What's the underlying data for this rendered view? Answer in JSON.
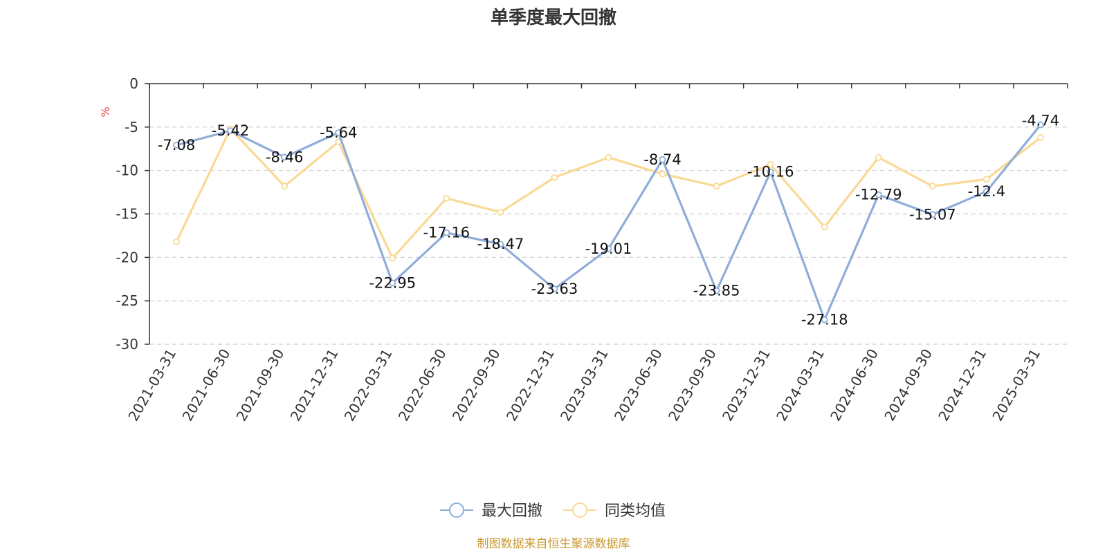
{
  "chart_data": {
    "type": "line",
    "title": "单季度最大回撤",
    "ylabel": "%",
    "ylim": [
      -30,
      0
    ],
    "yticks": [
      0,
      -5,
      -10,
      -15,
      -20,
      -25,
      -30
    ],
    "categories": [
      "2021-03-31",
      "2021-06-30",
      "2021-09-30",
      "2021-12-31",
      "2022-03-31",
      "2022-06-30",
      "2022-09-30",
      "2022-12-31",
      "2023-03-31",
      "2023-06-30",
      "2023-09-30",
      "2023-12-31",
      "2024-03-31",
      "2024-06-30",
      "2024-09-30",
      "2024-12-31",
      "2025-03-31"
    ],
    "series": [
      {
        "name": "最大回撤",
        "color": "#8FADD9",
        "values": [
          -7.08,
          -5.42,
          -8.46,
          -5.64,
          -22.95,
          -17.16,
          -18.47,
          -23.63,
          -19.01,
          -8.74,
          -23.85,
          -10.16,
          -27.18,
          -12.79,
          -15.07,
          -12.4,
          -4.74
        ],
        "labels": [
          "-7.08",
          "-5.42",
          "-8.46",
          "-5.64",
          "-22.95",
          "-17.16",
          "-18.47",
          "-23.63",
          "-19.01",
          "-8.74",
          "-23.85",
          "-10.16",
          "-27.18",
          "-12.79",
          "-15.07",
          "-12.4",
          "-4.74"
        ]
      },
      {
        "name": "同类均值",
        "color": "#FAD995",
        "values": [
          -18.2,
          -5.2,
          -11.8,
          -6.7,
          -20.1,
          -13.2,
          -14.8,
          -10.8,
          -8.5,
          -10.4,
          -11.8,
          -9.3,
          -16.5,
          -8.5,
          -11.8,
          -11.0,
          -6.2
        ]
      }
    ],
    "grid": true,
    "legend": "bottom"
  },
  "source_text": "制图数据来自恒生聚源数据库",
  "colors": {
    "axis": "#333333",
    "grid": "#CCCCCC",
    "unit": "#E8453C",
    "source": "#C99A2E"
  }
}
